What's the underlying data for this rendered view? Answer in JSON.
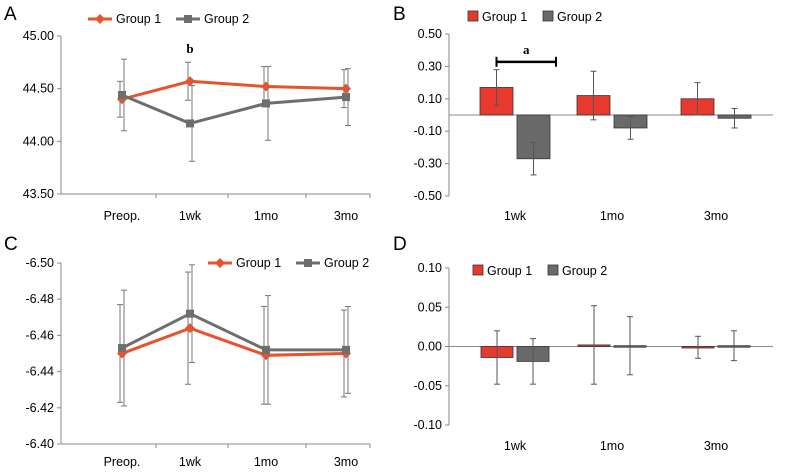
{
  "colors": {
    "group1": "#e8522d",
    "group2": "#6e6e6e",
    "bar1": "#e8392e",
    "bar2": "#6a6a6a"
  },
  "chart_data": [
    {
      "id": "A",
      "panel_label": "A",
      "type": "line",
      "categories": [
        "Preop.",
        "1wk",
        "1mo",
        "3mo"
      ],
      "ylim": [
        43.5,
        45.0
      ],
      "yticks": [
        "45.00",
        "44.50",
        "44.00",
        "43.50"
      ],
      "ytick_values": [
        45.0,
        44.5,
        44.0,
        43.5
      ],
      "legend": [
        "Group 1",
        "Group 2"
      ],
      "series": [
        {
          "name": "Group 1",
          "values": [
            44.4,
            44.57,
            44.52,
            44.5
          ],
          "err": [
            0.17,
            0.18,
            0.19,
            0.18
          ]
        },
        {
          "name": "Group 2",
          "values": [
            44.44,
            44.17,
            44.36,
            44.42
          ],
          "err": [
            0.34,
            0.36,
            0.35,
            0.27
          ]
        }
      ],
      "annotations": [
        {
          "text": "b",
          "category": "1wk",
          "y": 44.84
        }
      ]
    },
    {
      "id": "B",
      "panel_label": "B",
      "type": "bar",
      "categories": [
        "1wk",
        "1mo",
        "3mo"
      ],
      "ylim": [
        -0.5,
        0.5
      ],
      "yticks": [
        "0.50",
        "0.30",
        "0.10",
        "-0.10",
        "-0.30",
        "-0.50"
      ],
      "ytick_values": [
        0.5,
        0.3,
        0.1,
        -0.1,
        -0.3,
        -0.5
      ],
      "legend": [
        "Group 1",
        "Group 2"
      ],
      "series": [
        {
          "name": "Group 1",
          "values": [
            0.17,
            0.12,
            0.1
          ],
          "err": [
            0.11,
            0.15,
            0.1
          ]
        },
        {
          "name": "Group 2",
          "values": [
            -0.27,
            -0.08,
            -0.02
          ],
          "err": [
            0.1,
            0.07,
            0.06
          ]
        }
      ],
      "annotations": [
        {
          "text": "a",
          "category": "1wk",
          "y": 0.39
        }
      ]
    },
    {
      "id": "C",
      "panel_label": "C",
      "type": "line",
      "categories": [
        "Preop.",
        "1wk",
        "1mo",
        "3mo"
      ],
      "ylim": [
        -6.5,
        -6.4
      ],
      "yticks": [
        "-6.50",
        "-6.48",
        "-6.46",
        "-6.44",
        "-6.42",
        "-6.40"
      ],
      "ytick_values": [
        -6.5,
        -6.48,
        -6.46,
        -6.44,
        -6.42,
        -6.4
      ],
      "legend": [
        "Group 1",
        "Group 2"
      ],
      "series": [
        {
          "name": "Group 1",
          "values": [
            -6.45,
            -6.464,
            -6.449,
            -6.45
          ],
          "err": [
            0.027,
            0.031,
            0.027,
            0.024
          ]
        },
        {
          "name": "Group 2",
          "values": [
            -6.453,
            -6.472,
            -6.452,
            -6.452
          ],
          "err": [
            0.032,
            0.027,
            0.03,
            0.024
          ]
        }
      ]
    },
    {
      "id": "D",
      "panel_label": "D",
      "type": "bar",
      "categories": [
        "1wk",
        "1mo",
        "3mo"
      ],
      "ylim": [
        -0.1,
        0.1
      ],
      "yticks": [
        "0.10",
        "0.05",
        "0.00",
        "-0.05",
        "-0.10"
      ],
      "ytick_values": [
        0.1,
        0.05,
        0.0,
        -0.05,
        -0.1
      ],
      "legend": [
        "Group 1",
        "Group 2"
      ],
      "series": [
        {
          "name": "Group 1",
          "values": [
            -0.014,
            0.002,
            -0.001
          ],
          "err": [
            0.034,
            0.05,
            0.014
          ]
        },
        {
          "name": "Group 2",
          "values": [
            -0.019,
            0.001,
            0.001
          ],
          "err": [
            0.029,
            0.037,
            0.019
          ]
        }
      ]
    }
  ]
}
